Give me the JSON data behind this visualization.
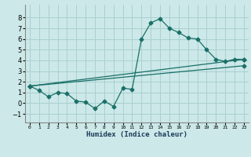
{
  "xlabel": "Humidex (Indice chaleur)",
  "bg_color": "#cce8e8",
  "grid_color": "#aad0d0",
  "line_color": "#1a7068",
  "xlim": [
    -0.5,
    23.5
  ],
  "ylim": [
    -1.8,
    9.2
  ],
  "xticks": [
    0,
    1,
    2,
    3,
    4,
    5,
    6,
    7,
    8,
    9,
    10,
    11,
    12,
    13,
    14,
    15,
    16,
    17,
    18,
    19,
    20,
    21,
    22,
    23
  ],
  "yticks": [
    -1,
    0,
    1,
    2,
    3,
    4,
    5,
    6,
    7,
    8
  ],
  "line1_x": [
    0,
    1,
    2,
    3,
    4,
    5,
    6,
    7,
    8,
    9,
    10,
    11,
    12,
    13,
    14,
    15,
    16,
    17,
    18,
    19,
    20,
    21,
    22,
    23
  ],
  "line1_y": [
    1.6,
    1.2,
    0.6,
    1.0,
    0.9,
    0.2,
    0.1,
    -0.5,
    0.2,
    -0.3,
    1.4,
    1.3,
    6.0,
    7.5,
    7.9,
    7.0,
    6.6,
    6.1,
    6.0,
    5.0,
    4.1,
    3.9,
    4.1,
    4.1
  ],
  "line2_x": [
    0,
    23
  ],
  "line2_y": [
    1.6,
    4.1
  ],
  "line3_x": [
    0,
    23
  ],
  "line3_y": [
    1.6,
    3.5
  ]
}
